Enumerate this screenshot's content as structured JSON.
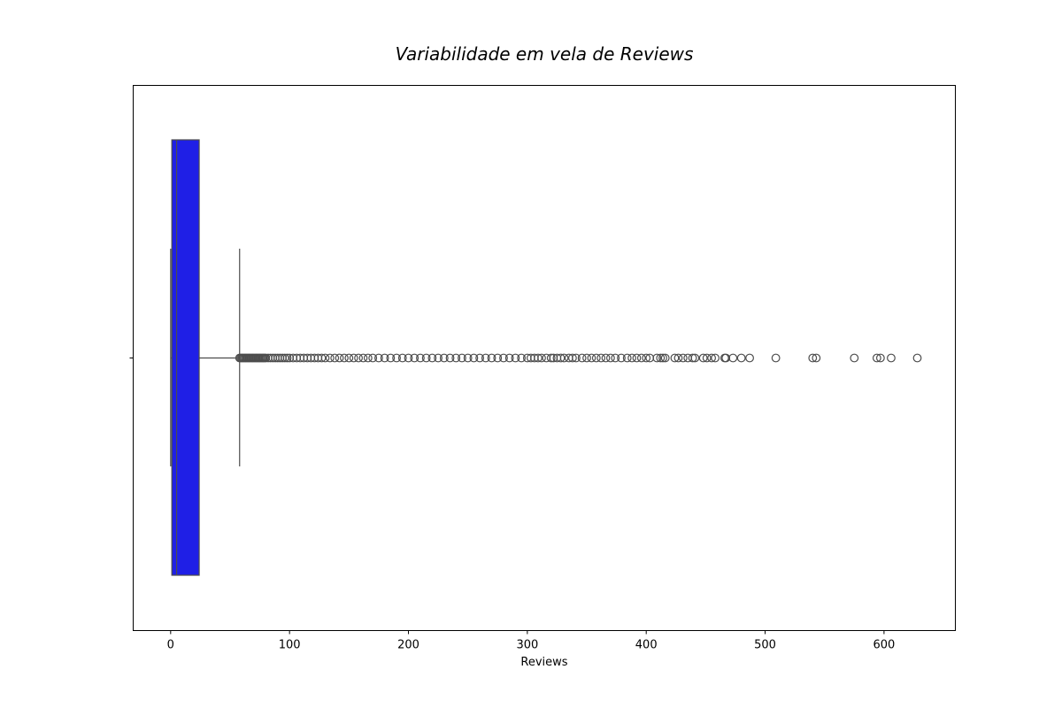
{
  "chart_data": {
    "type": "boxplot",
    "title": "Variabilidade em vela de Reviews",
    "xlabel": "Reviews",
    "ylabel": "",
    "xlim": [
      -31.5,
      660
    ],
    "xticks": [
      0,
      100,
      200,
      300,
      400,
      500,
      600
    ],
    "orientation": "horizontal",
    "grid": false,
    "box_color": "#1f1fe6",
    "line_color": "#4d4d4d",
    "series": [
      {
        "whisker_low": 0,
        "q1": 1,
        "median": 5,
        "q3": 24,
        "whisker_high": 58,
        "outliers": [
          58,
          59,
          60,
          61,
          62,
          63,
          64,
          65,
          66,
          67,
          68,
          69,
          70,
          71,
          72,
          73,
          74,
          75,
          76,
          77,
          78,
          79,
          80,
          82,
          84,
          86,
          88,
          90,
          92,
          94,
          96,
          98,
          100,
          103,
          106,
          109,
          112,
          115,
          118,
          121,
          124,
          127,
          130,
          134,
          138,
          142,
          146,
          150,
          154,
          158,
          162,
          166,
          170,
          175,
          180,
          185,
          190,
          195,
          200,
          205,
          210,
          215,
          220,
          225,
          230,
          235,
          240,
          245,
          250,
          255,
          260,
          265,
          270,
          275,
          280,
          285,
          290,
          295,
          300,
          303,
          306,
          309,
          312,
          316,
          320,
          322,
          325,
          328,
          331,
          335,
          338,
          341,
          346,
          350,
          354,
          358,
          362,
          366,
          370,
          374,
          379,
          384,
          388,
          392,
          396,
          400,
          403,
          409,
          412,
          414,
          416,
          424,
          427,
          431,
          435,
          439,
          441,
          448,
          451,
          455,
          458,
          466,
          467,
          473,
          480,
          487,
          509,
          540,
          543,
          575,
          594,
          597,
          606,
          628
        ]
      }
    ]
  }
}
